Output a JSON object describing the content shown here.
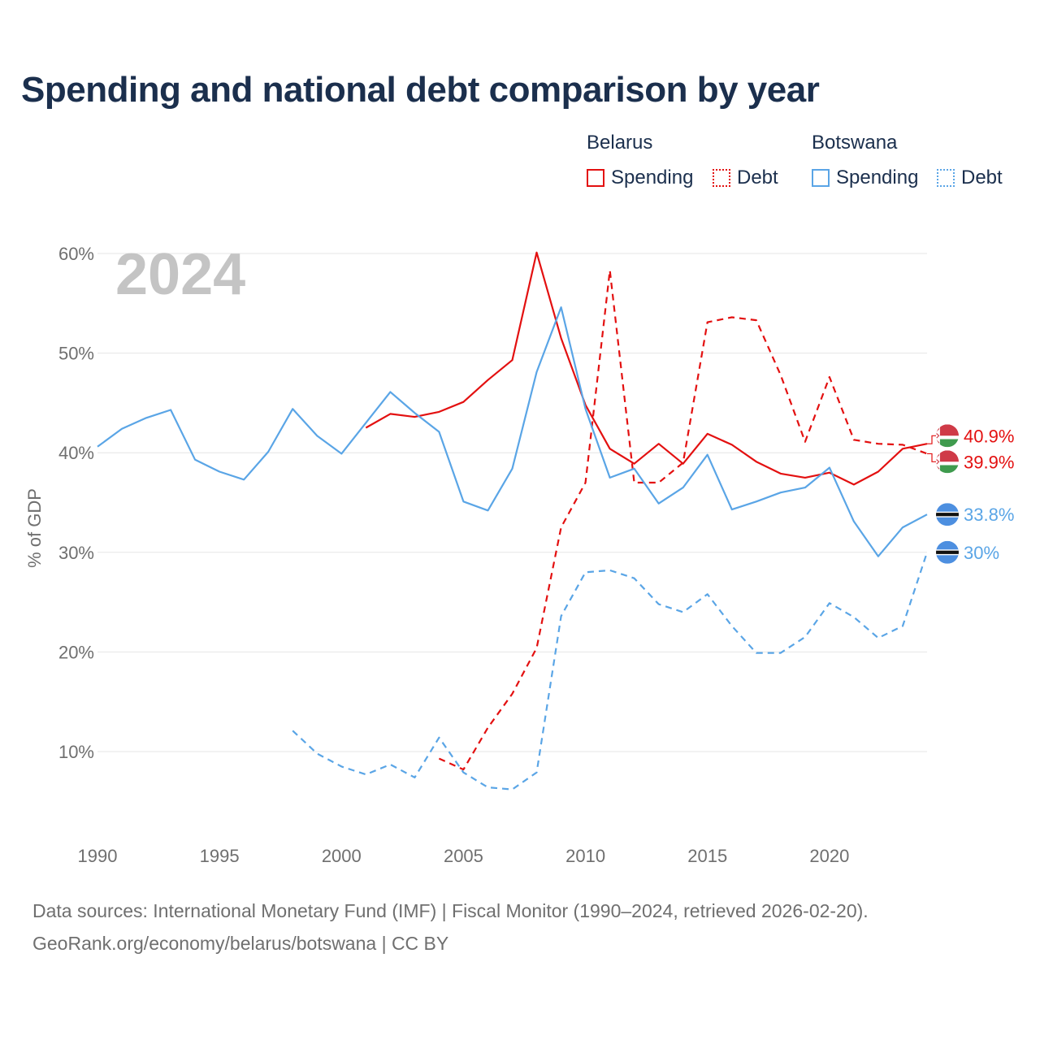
{
  "title": "Spending and national debt comparison by year",
  "legend": {
    "groups": [
      {
        "name": "Belarus",
        "items": [
          {
            "label": "Spending",
            "color": "#e31010",
            "style": "solid"
          },
          {
            "label": "Debt",
            "color": "#e31010",
            "style": "dotted"
          }
        ]
      },
      {
        "name": "Botswana",
        "items": [
          {
            "label": "Spending",
            "color": "#5aa5e6",
            "style": "solid"
          },
          {
            "label": "Debt",
            "color": "#5aa5e6",
            "style": "dotted"
          }
        ]
      }
    ]
  },
  "chart_data": {
    "type": "line",
    "year_label": "2024",
    "ylabel": "% of GDP",
    "xlim": [
      1990,
      2024
    ],
    "ylim": [
      0,
      62
    ],
    "x_ticks": [
      1990,
      1995,
      2000,
      2005,
      2010,
      2015,
      2020
    ],
    "y_ticks": [
      10,
      20,
      30,
      40,
      50,
      60
    ],
    "y_tick_labels": [
      "10%",
      "20%",
      "30%",
      "40%",
      "50%",
      "60%"
    ],
    "grid": true,
    "series": [
      {
        "name": "Belarus Spending",
        "country": "Belarus",
        "color": "#e31010",
        "dash": "none",
        "x": [
          2001,
          2002,
          2003,
          2004,
          2005,
          2006,
          2007,
          2008,
          2009,
          2010,
          2011,
          2012,
          2013,
          2014,
          2015,
          2016,
          2017,
          2018,
          2019,
          2020,
          2021,
          2022,
          2023,
          2024
        ],
        "values": [
          42.5,
          43.9,
          43.6,
          44.1,
          45.1,
          47.3,
          49.3,
          60.1,
          51.5,
          44.8,
          40.4,
          38.9,
          40.9,
          38.9,
          41.9,
          40.8,
          39.1,
          37.9,
          37.5,
          38.0,
          36.8,
          38.1,
          40.4,
          40.9
        ],
        "end_label": "40.9%"
      },
      {
        "name": "Belarus Debt",
        "country": "Belarus",
        "color": "#e31010",
        "dash": "8,6",
        "x": [
          2004,
          2005,
          2006,
          2007,
          2008,
          2009,
          2010,
          2011,
          2012,
          2013,
          2014,
          2015,
          2016,
          2017,
          2018,
          2019,
          2020,
          2021,
          2022,
          2023,
          2024
        ],
        "values": [
          9.3,
          8.2,
          12.4,
          15.8,
          20.4,
          32.5,
          37.0,
          58.3,
          37.0,
          37.0,
          39.0,
          53.1,
          53.6,
          53.3,
          47.8,
          41.1,
          47.6,
          41.3,
          40.9,
          40.8,
          39.9
        ],
        "end_label": "39.9%"
      },
      {
        "name": "Botswana Spending",
        "country": "Botswana",
        "color": "#5aa5e6",
        "dash": "none",
        "x": [
          1990,
          1991,
          1992,
          1993,
          1994,
          1995,
          1996,
          1997,
          1998,
          1999,
          2000,
          2001,
          2002,
          2003,
          2004,
          2005,
          2006,
          2007,
          2008,
          2009,
          2010,
          2011,
          2012,
          2013,
          2014,
          2015,
          2016,
          2017,
          2018,
          2019,
          2020,
          2021,
          2022,
          2023,
          2024
        ],
        "values": [
          40.6,
          42.4,
          43.5,
          44.3,
          39.3,
          38.1,
          37.3,
          40.1,
          44.4,
          41.7,
          39.9,
          43.0,
          46.1,
          44.0,
          42.1,
          35.1,
          34.2,
          38.4,
          48.1,
          54.6,
          44.4,
          37.5,
          38.4,
          34.9,
          36.5,
          39.8,
          34.3,
          35.1,
          36.0,
          36.5,
          38.5,
          33.1,
          29.6,
          32.5,
          33.8
        ],
        "end_label": "33.8%"
      },
      {
        "name": "Botswana Debt",
        "country": "Botswana",
        "color": "#5aa5e6",
        "dash": "8,6",
        "x": [
          1998,
          1999,
          2000,
          2001,
          2002,
          2003,
          2004,
          2005,
          2006,
          2007,
          2008,
          2009,
          2010,
          2011,
          2012,
          2013,
          2014,
          2015,
          2016,
          2017,
          2018,
          2019,
          2020,
          2021,
          2022,
          2023,
          2024
        ],
        "values": [
          12.1,
          9.8,
          8.5,
          7.7,
          8.7,
          7.4,
          11.4,
          7.9,
          6.4,
          6.2,
          7.9,
          23.6,
          28.0,
          28.2,
          27.4,
          24.8,
          24.0,
          25.8,
          22.6,
          19.9,
          19.9,
          21.5,
          24.9,
          23.5,
          21.4,
          22.6,
          30.0
        ],
        "end_label": "30%"
      }
    ]
  },
  "footer": {
    "line1": "Data sources: International Monetary Fund (IMF) | Fiscal Monitor (1990–2024, retrieved 2026-02-20).",
    "line2": "GeoRank.org/economy/belarus/botswana | CC BY"
  }
}
